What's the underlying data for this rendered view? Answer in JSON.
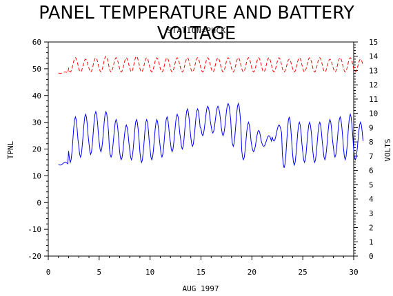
{
  "chart_data": {
    "type": "line",
    "title": "PANEL TEMPERATURE AND BATTERY VOLTAGE",
    "subtitle": "STATION=PHCK",
    "xlabel": "AUG 1997",
    "ylabel_left": "TPNL",
    "ylabel_right": "VOLTS",
    "xlim": [
      0,
      30
    ],
    "ylim_left": [
      -20,
      60
    ],
    "ylim_right": [
      0,
      15
    ],
    "x_ticks": [
      0,
      5,
      10,
      15,
      20,
      25,
      30
    ],
    "y_ticks_left": [
      -20,
      -10,
      0,
      10,
      20,
      30,
      40,
      50,
      60
    ],
    "y_ticks_right": [
      0,
      1,
      2,
      3,
      4,
      5,
      6,
      7,
      8,
      9,
      10,
      11,
      12,
      13,
      14,
      15
    ],
    "grid": false,
    "series": [
      {
        "axis": "left",
        "color": "#0000ff",
        "style": "solid",
        "daily_min": [
          14,
          15,
          17,
          18,
          19,
          17,
          16,
          16,
          15,
          16,
          17,
          19,
          20,
          21,
          25,
          26,
          25,
          21,
          16,
          19,
          21,
          23,
          13,
          14,
          15,
          15,
          16,
          17,
          16,
          16
        ],
        "daily_max": [
          15,
          32,
          33,
          34,
          34,
          31,
          29,
          31,
          31,
          31,
          32,
          33,
          35,
          35,
          36,
          36,
          37,
          37,
          30,
          27,
          25,
          29,
          32,
          30,
          30,
          30,
          31,
          32,
          33,
          30
        ]
      },
      {
        "axis": "right",
        "color": "#ff0000",
        "style": "dashed",
        "daily_min": [
          12.8,
          12.9,
          12.9,
          12.9,
          12.9,
          12.9,
          12.9,
          12.9,
          12.9,
          12.9,
          12.9,
          12.9,
          12.9,
          12.9,
          12.9,
          12.9,
          12.9,
          12.9,
          12.9,
          12.9,
          12.9,
          12.9,
          12.9,
          12.9,
          12.9,
          12.9,
          12.9,
          12.9,
          12.9,
          12.9
        ],
        "daily_max": [
          12.9,
          13.9,
          13.8,
          13.9,
          14.0,
          13.9,
          13.9,
          14.0,
          13.9,
          13.9,
          13.9,
          13.9,
          13.9,
          13.9,
          13.9,
          13.9,
          13.9,
          13.9,
          13.9,
          13.9,
          13.9,
          13.9,
          13.8,
          13.9,
          13.9,
          13.9,
          13.8,
          13.9,
          13.9,
          13.8
        ]
      }
    ]
  }
}
